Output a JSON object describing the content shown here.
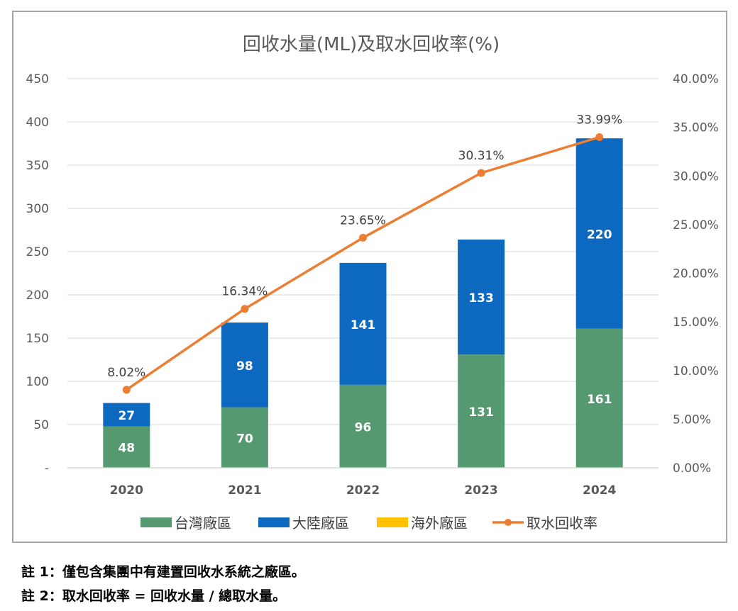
{
  "chart_data": {
    "type": "bar",
    "stacked": true,
    "title": "回收水量(ML)及取水回收率(%)",
    "xlabel": "",
    "ylabel": "",
    "y2label": "",
    "categories": [
      "2020",
      "2021",
      "2022",
      "2023",
      "2024"
    ],
    "ylim": [
      0,
      450
    ],
    "y_ticks": [
      0,
      50,
      100,
      150,
      200,
      250,
      300,
      350,
      400,
      450
    ],
    "y_tick_labels": [
      "-",
      "50",
      "100",
      "150",
      "200",
      "250",
      "300",
      "350",
      "400",
      "450"
    ],
    "y2lim": [
      0,
      40
    ],
    "y2_ticks": [
      0,
      5,
      10,
      15,
      20,
      25,
      30,
      35,
      40
    ],
    "y2_tick_labels": [
      "0.00%",
      "5.00%",
      "10.00%",
      "15.00%",
      "20.00%",
      "25.00%",
      "30.00%",
      "35.00%",
      "40.00%"
    ],
    "grid": true,
    "legend_position": "bottom",
    "series": [
      {
        "name": "台灣廠區",
        "type": "bar",
        "color": "#559970",
        "values": [
          48,
          70,
          96,
          131,
          161
        ],
        "labels": [
          "48",
          "70",
          "96",
          "131",
          "161"
        ]
      },
      {
        "name": "大陸廠區",
        "type": "bar",
        "color": "#0d68bf",
        "values": [
          27,
          98,
          141,
          133,
          220
        ],
        "labels": [
          "27",
          "98",
          "141",
          "133",
          "220"
        ]
      },
      {
        "name": "海外廠區",
        "type": "bar",
        "color": "#ffc000",
        "values": [
          0,
          0,
          0,
          0,
          0
        ],
        "labels": []
      },
      {
        "name": "取水回收率",
        "type": "line",
        "axis": "right",
        "color": "#ed7d31",
        "values": [
          8.02,
          16.34,
          23.65,
          30.31,
          33.99
        ],
        "labels": [
          "8.02%",
          "16.34%",
          "23.65%",
          "30.31%",
          "33.99%"
        ]
      }
    ]
  },
  "notes": [
    "註 1：僅包含集團中有建置回收水系統之廠區。",
    "註 2：取水回收率 = 回收水量 / 總取水量。"
  ]
}
